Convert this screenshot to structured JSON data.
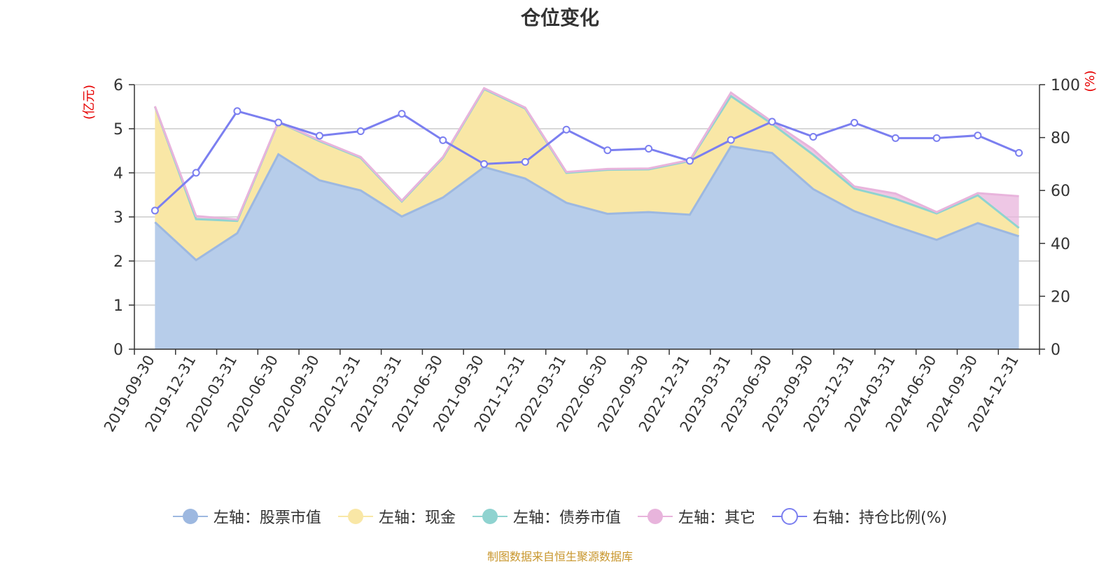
{
  "title": "仓位变化",
  "source_note": "制图数据来自恒生聚源数据库",
  "colors": {
    "stock": "#9db8e0",
    "stock_fill": "#b7cdea",
    "cash": "#f9e7a6",
    "bond": "#8fd3d0",
    "other": "#e8b4dc",
    "ratio": "#7b7ff0",
    "axis_unit": "#e60000",
    "grid": "#cccccc",
    "axis": "#333333"
  },
  "chart_data": {
    "type": "area",
    "title": "仓位变化",
    "left_axis": {
      "label": "(亿元)",
      "range": [
        0,
        6
      ],
      "ticks": [
        0,
        1,
        2,
        3,
        4,
        5,
        6
      ]
    },
    "right_axis": {
      "label": "(%)",
      "range": [
        0,
        100
      ],
      "ticks": [
        0,
        20,
        40,
        60,
        80,
        100
      ]
    },
    "categories": [
      "2019-09-30",
      "2019-12-31",
      "2020-03-31",
      "2020-06-30",
      "2020-09-30",
      "2020-12-31",
      "2021-03-31",
      "2021-06-30",
      "2021-09-30",
      "2021-12-31",
      "2022-03-31",
      "2022-06-30",
      "2022-09-30",
      "2022-12-31",
      "2023-03-31",
      "2023-06-30",
      "2023-09-30",
      "2023-12-31",
      "2024-03-31",
      "2024-06-30",
      "2024-09-30",
      "2024-12-31"
    ],
    "series": [
      {
        "name": "左轴：股票市值",
        "axis": "left",
        "stacked": true,
        "values": [
          2.88,
          2.02,
          2.63,
          4.42,
          3.83,
          3.6,
          3.01,
          3.44,
          4.13,
          3.87,
          3.32,
          3.07,
          3.11,
          3.05,
          4.6,
          4.45,
          3.63,
          3.13,
          2.79,
          2.48,
          2.86,
          2.56
        ]
      },
      {
        "name": "左轴：现金",
        "axis": "left",
        "stacked": true,
        "values": [
          2.62,
          0.93,
          0.28,
          0.73,
          0.89,
          0.74,
          0.34,
          0.9,
          1.77,
          1.59,
          0.68,
          1.0,
          0.97,
          1.22,
          1.14,
          0.66,
          0.78,
          0.51,
          0.62,
          0.6,
          0.63,
          0.19
        ]
      },
      {
        "name": "左轴：债券市值",
        "axis": "left",
        "stacked": true,
        "values": [
          0,
          0,
          0,
          0,
          0,
          0,
          0,
          0,
          0,
          0,
          0,
          0,
          0,
          0,
          0,
          0,
          0,
          0,
          0,
          0,
          0,
          0
        ]
      },
      {
        "name": "左轴：其它",
        "axis": "left",
        "stacked": true,
        "values": [
          0.01,
          0.07,
          0.03,
          0.01,
          0.02,
          0.02,
          0.02,
          0.02,
          0.02,
          0.02,
          0.02,
          0.02,
          0.02,
          0.02,
          0.08,
          0.05,
          0.12,
          0.05,
          0.12,
          0.03,
          0.05,
          0.72
        ]
      },
      {
        "name": "右轴：持仓比例(%)",
        "axis": "right",
        "type": "line",
        "values": [
          52.4,
          66.7,
          90.0,
          85.7,
          80.7,
          82.4,
          89.0,
          79.0,
          70.0,
          70.8,
          83.0,
          75.2,
          75.8,
          71.2,
          79.1,
          86.0,
          80.3,
          85.6,
          79.8,
          79.8,
          80.8,
          74.2
        ]
      }
    ]
  }
}
